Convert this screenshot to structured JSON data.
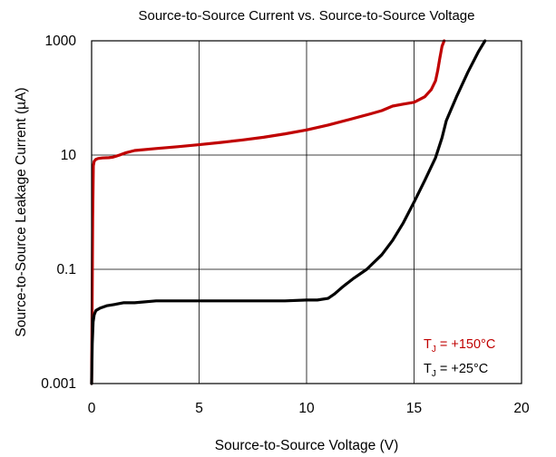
{
  "chart_data": {
    "type": "line",
    "title": "Source-to-Source Current vs. Source-to-Source Voltage",
    "xlabel": "Source-to-Source Voltage (V)",
    "ylabel": "Source-to-Source Leakage Current (µA)",
    "xlim": [
      0,
      20
    ],
    "ylim": [
      0.001,
      1000
    ],
    "yscale": "log",
    "grid": true,
    "x_ticks": [
      0,
      5,
      10,
      15,
      20
    ],
    "x_tick_labels": [
      "0",
      "5",
      "10",
      "15",
      "20"
    ],
    "y_ticks": [
      0.001,
      0.1,
      10,
      1000
    ],
    "y_tick_labels": [
      "0.001",
      "0.1",
      "10",
      "1000"
    ],
    "legend_placement": "bottom-right",
    "series": [
      {
        "name": "TJ = +150°C",
        "label_main": "T",
        "label_sub": "J",
        "label_rest": " = +150°C",
        "color": "#c00000",
        "x": [
          0,
          0.02,
          0.05,
          0.08,
          0.12,
          0.2,
          0.3,
          0.5,
          0.8,
          1.0,
          1.3,
          1.6,
          2.0,
          3.0,
          4.0,
          5.0,
          6.0,
          7.0,
          8.0,
          9.0,
          10.0,
          11.0,
          12.0,
          13.0,
          13.5,
          14.0,
          14.5,
          15.0,
          15.5,
          15.8,
          16.0,
          16.1,
          16.2,
          16.3,
          16.4
        ],
        "y": [
          0.001,
          0.012,
          0.8,
          6.5,
          7.8,
          8.4,
          8.7,
          8.9,
          9.0,
          9.2,
          10.0,
          11.0,
          12.0,
          13.0,
          14.0,
          15.2,
          16.6,
          18.3,
          20.5,
          23.5,
          27.5,
          33.5,
          42.0,
          53.0,
          60.0,
          72.0,
          78.0,
          84.0,
          105.0,
          140.0,
          200.0,
          300.0,
          500.0,
          800.0,
          1000.0
        ]
      },
      {
        "name": "TJ = +25°C",
        "label_main": "T",
        "label_sub": "J",
        "label_rest": " = +25°C",
        "color": "#000000",
        "x": [
          0,
          0.03,
          0.07,
          0.12,
          0.2,
          0.4,
          0.7,
          1.0,
          1.5,
          2.0,
          3.0,
          5.0,
          7.0,
          9.0,
          10.0,
          10.5,
          11.0,
          11.3,
          11.7,
          12.2,
          12.8,
          13.5,
          14.0,
          14.5,
          15.0,
          15.5,
          16.0,
          16.3,
          16.5,
          17.0,
          17.5,
          18.0,
          18.3
        ],
        "y": [
          0.001,
          0.005,
          0.012,
          0.016,
          0.019,
          0.021,
          0.023,
          0.024,
          0.026,
          0.026,
          0.028,
          0.028,
          0.028,
          0.028,
          0.029,
          0.029,
          0.031,
          0.037,
          0.05,
          0.07,
          0.1,
          0.18,
          0.32,
          0.65,
          1.5,
          3.6,
          9.0,
          20.0,
          40.0,
          110.0,
          280.0,
          650.0,
          1000.0
        ]
      }
    ]
  }
}
